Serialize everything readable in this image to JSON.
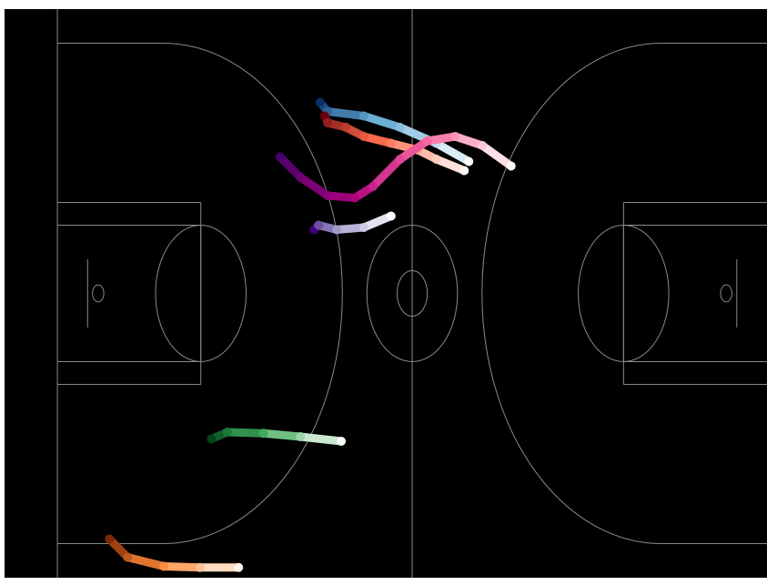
{
  "chart_data": {
    "type": "trajectory",
    "xlim": [
      -7,
      94
    ],
    "ylim": [
      0,
      50
    ],
    "series": [
      {
        "colors": [
          "#08306b",
          "#6baed6",
          "#f7fbff"
        ],
        "x": [
          34.8,
          35.8,
          40.6,
          45.4,
          50.2,
          54.5
        ],
        "y": [
          8.2,
          9.0,
          9.4,
          10.4,
          11.8,
          13.4
        ]
      },
      {
        "colors": [
          "#67000d",
          "#fb6a4a",
          "#fff5f0"
        ],
        "x": [
          35.4,
          35.8,
          38.2,
          40.6,
          44.2,
          47.8,
          50.2,
          53.9
        ],
        "y": [
          9.4,
          10.0,
          10.4,
          11.2,
          11.8,
          12.4,
          13.2,
          14.2
        ]
      },
      {
        "colors": [
          "#49006a",
          "#ae017e",
          "#f768a1",
          "#fff7f3"
        ],
        "x": [
          29.5,
          32.2,
          35.8,
          39.4,
          41.8,
          45.4,
          49.0,
          52.7,
          56.3,
          60.1
        ],
        "y": [
          13.0,
          14.8,
          16.4,
          16.6,
          15.6,
          13.2,
          11.6,
          11.2,
          12.0,
          13.8
        ]
      },
      {
        "colors": [
          "#3f007d",
          "#9e9ac8",
          "#fcfbfd"
        ],
        "x": [
          34.0,
          34.6,
          37.0,
          40.6,
          44.2
        ],
        "y": [
          19.4,
          19.0,
          19.4,
          19.2,
          18.2
        ]
      },
      {
        "colors": [
          "#00441b",
          "#41ab5d",
          "#f7fcf5"
        ],
        "x": [
          20.4,
          22.5,
          27.3,
          32.2,
          37.6
        ],
        "y": [
          37.8,
          37.2,
          37.3,
          37.6,
          38.0
        ]
      },
      {
        "colors": [
          "#7f2704",
          "#fd8d3c",
          "#fff5eb"
        ],
        "x": [
          6.9,
          9.3,
          14.1,
          18.9,
          24.0
        ],
        "y": [
          46.6,
          48.2,
          49.0,
          49.1,
          49.1
        ]
      }
    ]
  }
}
